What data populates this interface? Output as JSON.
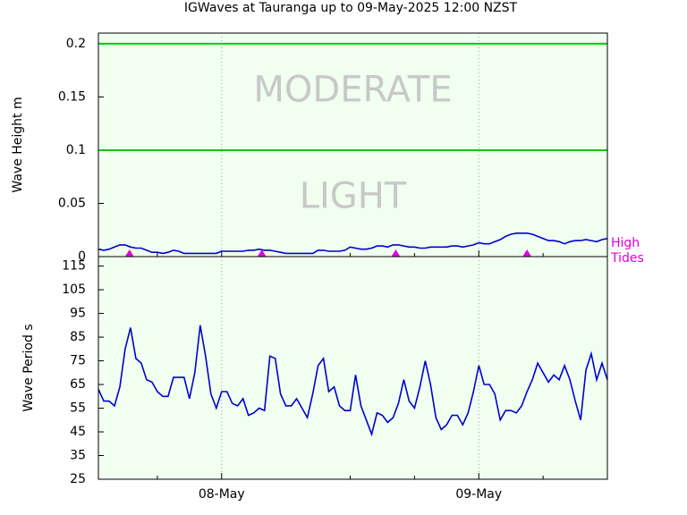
{
  "title": "IGWaves at Tauranga up to 09-May-2025 12:00 NZST",
  "chart_data": [
    {
      "type": "line",
      "ylabel": "Wave Height m",
      "ylim": [
        0,
        0.21
      ],
      "yticks": [
        0,
        0.05,
        0.1,
        0.15,
        0.2
      ],
      "xlim": [
        12.5,
        60
      ],
      "xticks": [
        {
          "value": 24,
          "label": "08-May"
        },
        {
          "value": 48,
          "label": "09-May"
        }
      ],
      "xminor": [
        18,
        36,
        42,
        54
      ],
      "grid": true,
      "thresholds": [
        0.1,
        0.2
      ],
      "threshold_color": "#00cc00",
      "zone_labels": [
        "LIGHT",
        "MODERATE"
      ],
      "high_tides": {
        "label": "High Tides",
        "color": "#e000e0",
        "x": [
          15.4,
          27.75,
          40.25,
          52.5
        ]
      },
      "x": [
        12.5,
        13,
        13.5,
        14,
        14.5,
        15,
        15.5,
        16,
        16.5,
        17,
        17.5,
        18,
        18.5,
        19,
        19.5,
        20,
        20.5,
        21,
        21.5,
        22,
        22.5,
        23,
        23.5,
        24,
        24.5,
        25,
        25.5,
        26,
        26.5,
        27,
        27.5,
        28,
        28.5,
        29,
        29.5,
        30,
        30.5,
        31,
        31.5,
        32,
        32.5,
        33,
        33.5,
        34,
        34.5,
        35,
        35.5,
        36,
        36.5,
        37,
        37.5,
        38,
        38.5,
        39,
        39.5,
        40,
        40.5,
        41,
        41.5,
        42,
        42.5,
        43,
        43.5,
        44,
        44.5,
        45,
        45.5,
        46,
        46.5,
        47,
        47.5,
        48,
        48.5,
        49,
        49.5,
        50,
        50.5,
        51,
        51.5,
        52,
        52.5,
        53,
        53.5,
        54,
        54.5,
        55,
        55.5,
        56,
        56.5,
        57,
        57.5,
        58,
        58.5,
        59,
        59.5,
        60
      ],
      "series": [
        {
          "color": "#0000cc",
          "values": [
            0.007,
            0.006,
            0.007,
            0.009,
            0.011,
            0.011,
            0.009,
            0.008,
            0.008,
            0.006,
            0.004,
            0.004,
            0.003,
            0.004,
            0.006,
            0.005,
            0.003,
            0.003,
            0.003,
            0.003,
            0.003,
            0.003,
            0.003,
            0.005,
            0.005,
            0.005,
            0.005,
            0.005,
            0.006,
            0.006,
            0.007,
            0.006,
            0.006,
            0.005,
            0.004,
            0.003,
            0.003,
            0.003,
            0.003,
            0.003,
            0.003,
            0.006,
            0.006,
            0.005,
            0.005,
            0.005,
            0.006,
            0.009,
            0.008,
            0.007,
            0.007,
            0.008,
            0.01,
            0.01,
            0.009,
            0.011,
            0.011,
            0.01,
            0.009,
            0.009,
            0.008,
            0.008,
            0.009,
            0.009,
            0.009,
            0.009,
            0.01,
            0.01,
            0.009,
            0.01,
            0.011,
            0.013,
            0.012,
            0.012,
            0.014,
            0.016,
            0.019,
            0.021,
            0.022,
            0.022,
            0.022,
            0.021,
            0.019,
            0.017,
            0.015,
            0.015,
            0.014,
            0.012,
            0.014,
            0.015,
            0.015,
            0.016,
            0.015,
            0.014,
            0.016,
            0.017
          ]
        }
      ]
    },
    {
      "type": "line",
      "ylabel": "Wave Period s",
      "ylim": [
        25,
        119
      ],
      "yticks": [
        25,
        35,
        45,
        55,
        65,
        75,
        85,
        95,
        105,
        115
      ],
      "xlim": [
        12.5,
        60
      ],
      "xticks": [
        {
          "value": 24,
          "label": "08-May"
        },
        {
          "value": 48,
          "label": "09-May"
        }
      ],
      "xminor": [
        18,
        36,
        42,
        54
      ],
      "grid": true,
      "x": [
        12.5,
        13,
        13.5,
        14,
        14.5,
        15,
        15.5,
        16,
        16.5,
        17,
        17.5,
        18,
        18.5,
        19,
        19.5,
        20,
        20.5,
        21,
        21.5,
        22,
        22.5,
        23,
        23.5,
        24,
        24.5,
        25,
        25.5,
        26,
        26.5,
        27,
        27.5,
        28,
        28.5,
        29,
        29.5,
        30,
        30.5,
        31,
        31.5,
        32,
        32.5,
        33,
        33.5,
        34,
        34.5,
        35,
        35.5,
        36,
        36.5,
        37,
        37.5,
        38,
        38.5,
        39,
        39.5,
        40,
        40.5,
        41,
        41.5,
        42,
        42.5,
        43,
        43.5,
        44,
        44.5,
        45,
        45.5,
        46,
        46.5,
        47,
        47.5,
        48,
        48.5,
        49,
        49.5,
        50,
        50.5,
        51,
        51.5,
        52,
        52.5,
        53,
        53.5,
        54,
        54.5,
        55,
        55.5,
        56,
        56.5,
        57,
        57.5,
        58,
        58.5,
        59,
        59.5,
        60
      ],
      "series": [
        {
          "color": "#0000cc",
          "values": [
            63,
            58,
            58,
            56,
            64,
            80,
            89,
            76,
            74,
            67,
            66,
            62,
            60,
            60,
            68,
            68,
            68,
            59,
            70,
            90,
            77,
            61,
            55,
            62,
            62,
            57,
            56,
            59,
            52,
            53,
            55,
            54,
            77,
            76,
            61,
            56,
            56,
            59,
            55,
            51,
            61,
            73,
            76,
            62,
            64,
            56,
            54,
            54,
            69,
            56,
            50,
            44,
            53,
            52,
            49,
            51,
            57,
            67,
            58,
            55,
            64,
            75,
            65,
            51,
            46,
            48,
            52,
            52,
            48,
            53,
            62,
            73,
            65,
            65,
            61,
            50,
            54,
            54,
            53,
            56,
            62,
            67,
            74,
            70,
            66,
            69,
            67,
            73,
            67,
            58,
            50,
            71,
            78,
            67,
            74,
            67
          ]
        }
      ]
    }
  ]
}
